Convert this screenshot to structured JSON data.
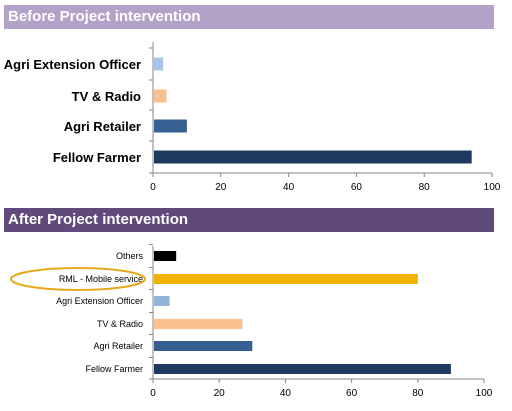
{
  "banners": {
    "before": "Before Project intervention",
    "after": "After Project intervention"
  },
  "chart_data": [
    {
      "type": "bar",
      "orientation": "horizontal",
      "title": "Before Project intervention",
      "categories": [
        "Agri Extension Officer",
        "TV & Radio",
        "Agri Retailer",
        "Fellow Farmer"
      ],
      "values": [
        3,
        4,
        10,
        94
      ],
      "colors": [
        "#a9c4e4",
        "#fac090",
        "#376092",
        "#1f3a5f"
      ],
      "xlim": [
        0,
        100
      ],
      "xticks": [
        0,
        20,
        40,
        60,
        80,
        100
      ],
      "grid": false
    },
    {
      "type": "bar",
      "orientation": "horizontal",
      "title": "After Project intervention",
      "categories": [
        "Others",
        "RML - Mobile service",
        "Agri Extension Officer",
        "TV & Radio",
        "Agri Retailer",
        "Fellow Farmer"
      ],
      "values": [
        7,
        80,
        5,
        27,
        30,
        90
      ],
      "colors": [
        "#000000",
        "#f0b400",
        "#95b3d7",
        "#fac090",
        "#376092",
        "#1f3a5f"
      ],
      "highlighted_category": "RML - Mobile service",
      "highlight_color": "#e6a817",
      "xlim": [
        0,
        100
      ],
      "xticks": [
        0,
        20,
        40,
        60,
        80,
        100
      ],
      "grid": false
    }
  ]
}
